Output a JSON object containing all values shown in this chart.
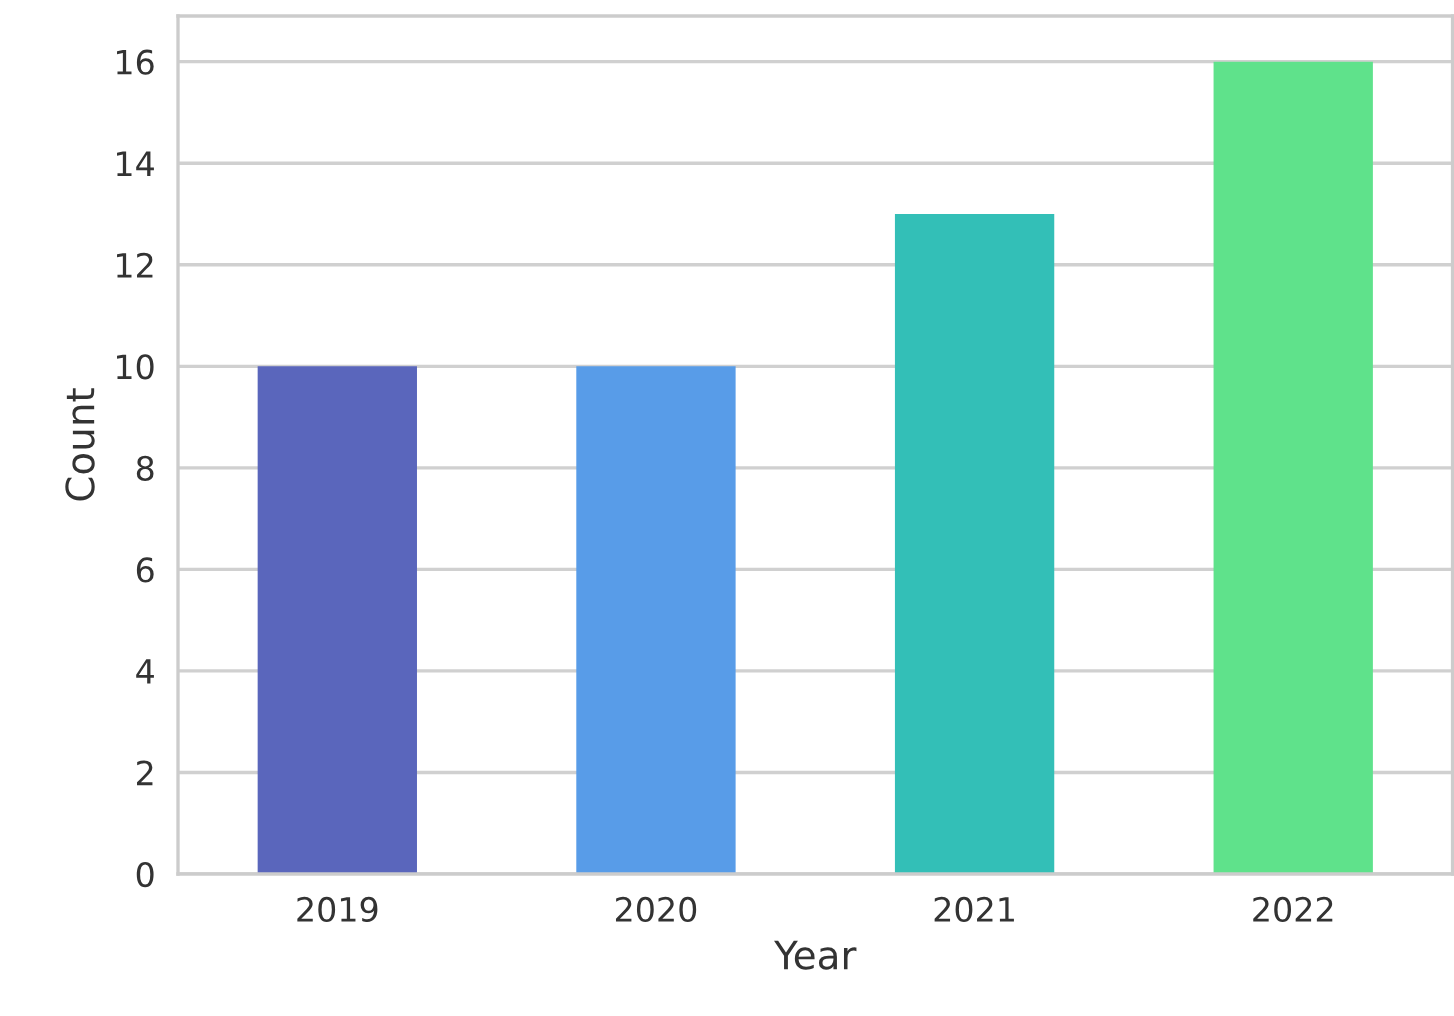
{
  "chart_data": {
    "type": "bar",
    "xlabel": "Year",
    "ylabel": "Count",
    "categories": [
      "2019",
      "2020",
      "2021",
      "2022"
    ],
    "values": [
      10,
      10,
      13,
      16
    ],
    "colors": [
      "#5a66bc",
      "#589ce8",
      "#33bfb7",
      "#5fe28b"
    ],
    "ylim": [
      0,
      16.9
    ],
    "yticks": [
      0,
      2,
      4,
      6,
      8,
      10,
      12,
      14,
      16
    ],
    "grid": "y"
  }
}
